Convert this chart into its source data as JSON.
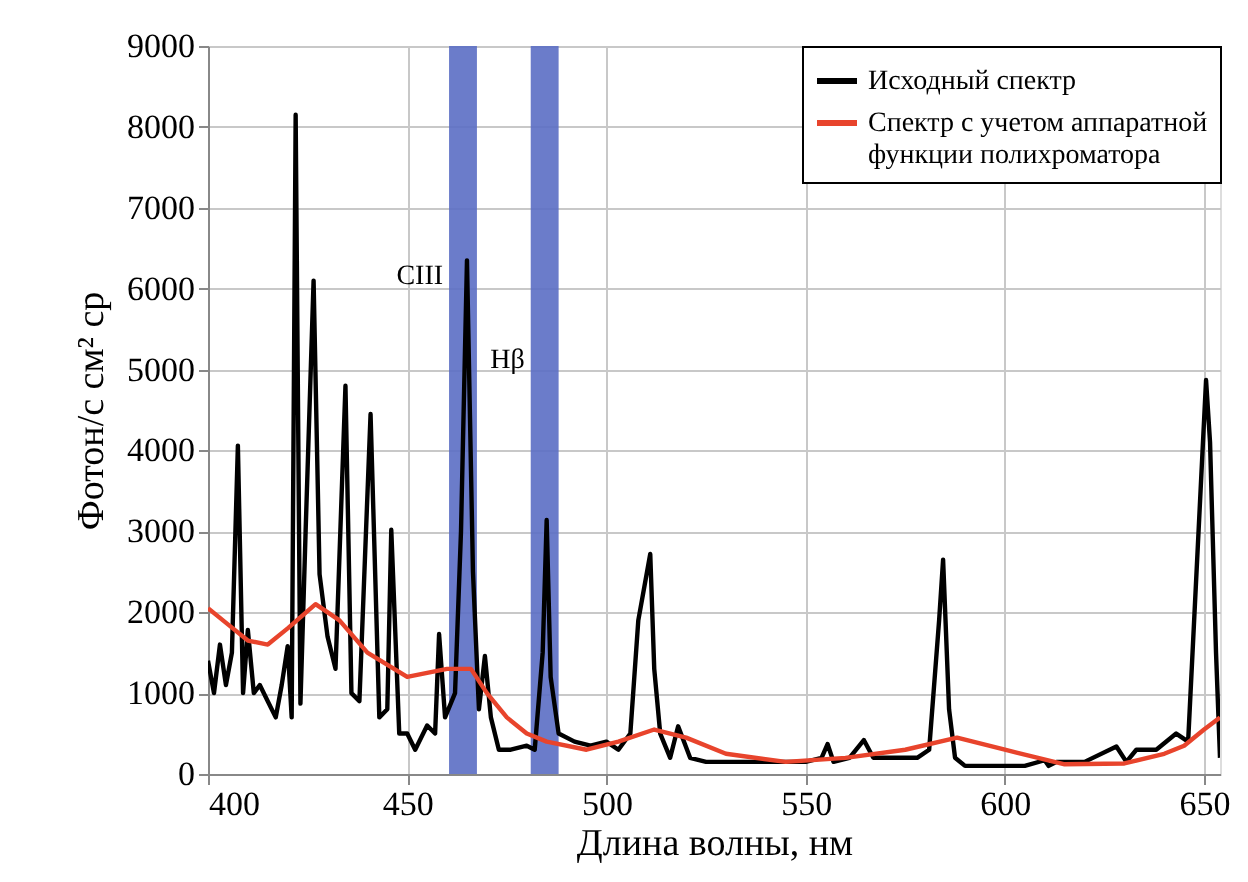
{
  "chart_data": {
    "type": "line",
    "xlabel": "Длина волны, нм",
    "ylabel": "Фотон/с см² ср",
    "xlim": [
      400,
      654
    ],
    "xticks": [
      400,
      450,
      500,
      550,
      600,
      650
    ],
    "ylim": [
      0,
      9000
    ],
    "yticks": [
      0,
      1000,
      2000,
      3000,
      4000,
      5000,
      6000,
      7000,
      8000,
      9000
    ],
    "grid": true,
    "legend": "top right",
    "line_style": "solid",
    "marker": "none",
    "series": [
      {
        "name": "Исходный спектр",
        "color": "#000000",
        "x": [
          400,
          401.5,
          403,
          404.5,
          406,
          407.5,
          408.8,
          410,
          411.5,
          413,
          415,
          417,
          418.5,
          420,
          421,
          422,
          423.2,
          424.5,
          426.5,
          428,
          430,
          432,
          434.5,
          436,
          438,
          440.8,
          443,
          445,
          446,
          448,
          450,
          452,
          455,
          457,
          458,
          459.5,
          462,
          463.5,
          465,
          466.5,
          468,
          469.5,
          471,
          473,
          476,
          480,
          482,
          484,
          485,
          486,
          488,
          492,
          496,
          500,
          503,
          506,
          508,
          511,
          512,
          513.5,
          516,
          518,
          521,
          525,
          530,
          540,
          550,
          554,
          555.5,
          557,
          561,
          564.6,
          567,
          572,
          578,
          581,
          583.5,
          584.5,
          586,
          587.5,
          590,
          595,
          600,
          605,
          610,
          611,
          613,
          620,
          628,
          630.5,
          633,
          638,
          643,
          646,
          650.5,
          651.5,
          653,
          654
        ],
        "values": [
          1400,
          1000,
          1600,
          1100,
          1500,
          4060,
          1000,
          1780,
          1000,
          1100,
          900,
          700,
          1100,
          1580,
          700,
          8150,
          870,
          3000,
          6100,
          2470,
          1700,
          1300,
          4800,
          1000,
          900,
          4450,
          700,
          800,
          3020,
          500,
          500,
          300,
          600,
          500,
          1730,
          700,
          1000,
          3000,
          6350,
          2500,
          800,
          1460,
          700,
          300,
          300,
          350,
          300,
          1500,
          3140,
          1200,
          500,
          400,
          350,
          400,
          300,
          500,
          1900,
          2720,
          1300,
          500,
          200,
          590,
          200,
          150,
          150,
          150,
          150,
          200,
          370,
          150,
          200,
          420,
          200,
          200,
          200,
          300,
          1900,
          2650,
          800,
          200,
          100,
          100,
          100,
          100,
          170,
          100,
          150,
          150,
          340,
          150,
          300,
          300,
          500,
          400,
          4870,
          4100,
          1500,
          200
        ]
      },
      {
        "name": "Спектр с учетом аппаратной функции полихроматора",
        "color": "#e8442c",
        "x": [
          400,
          405,
          410,
          415,
          420,
          427,
          433,
          440,
          450,
          460,
          466,
          470,
          475,
          480,
          485,
          495,
          503,
          512,
          520,
          530,
          545,
          560,
          575,
          588,
          600,
          615,
          630,
          640,
          645,
          650,
          654
        ],
        "values": [
          2050,
          1850,
          1650,
          1600,
          1800,
          2100,
          1900,
          1500,
          1200,
          1300,
          1300,
          1000,
          700,
          500,
          400,
          300,
          400,
          550,
          450,
          250,
          150,
          200,
          300,
          450,
          300,
          120,
          130,
          250,
          350,
          550,
          700
        ]
      }
    ],
    "bands": [
      {
        "axis": "x",
        "from": 460.5,
        "to": 467.5,
        "color": "#5b6ec4"
      },
      {
        "axis": "x",
        "from": 481,
        "to": 488,
        "color": "#5b6ec4"
      }
    ],
    "annotations": [
      "CIII",
      "Hβ"
    ]
  }
}
